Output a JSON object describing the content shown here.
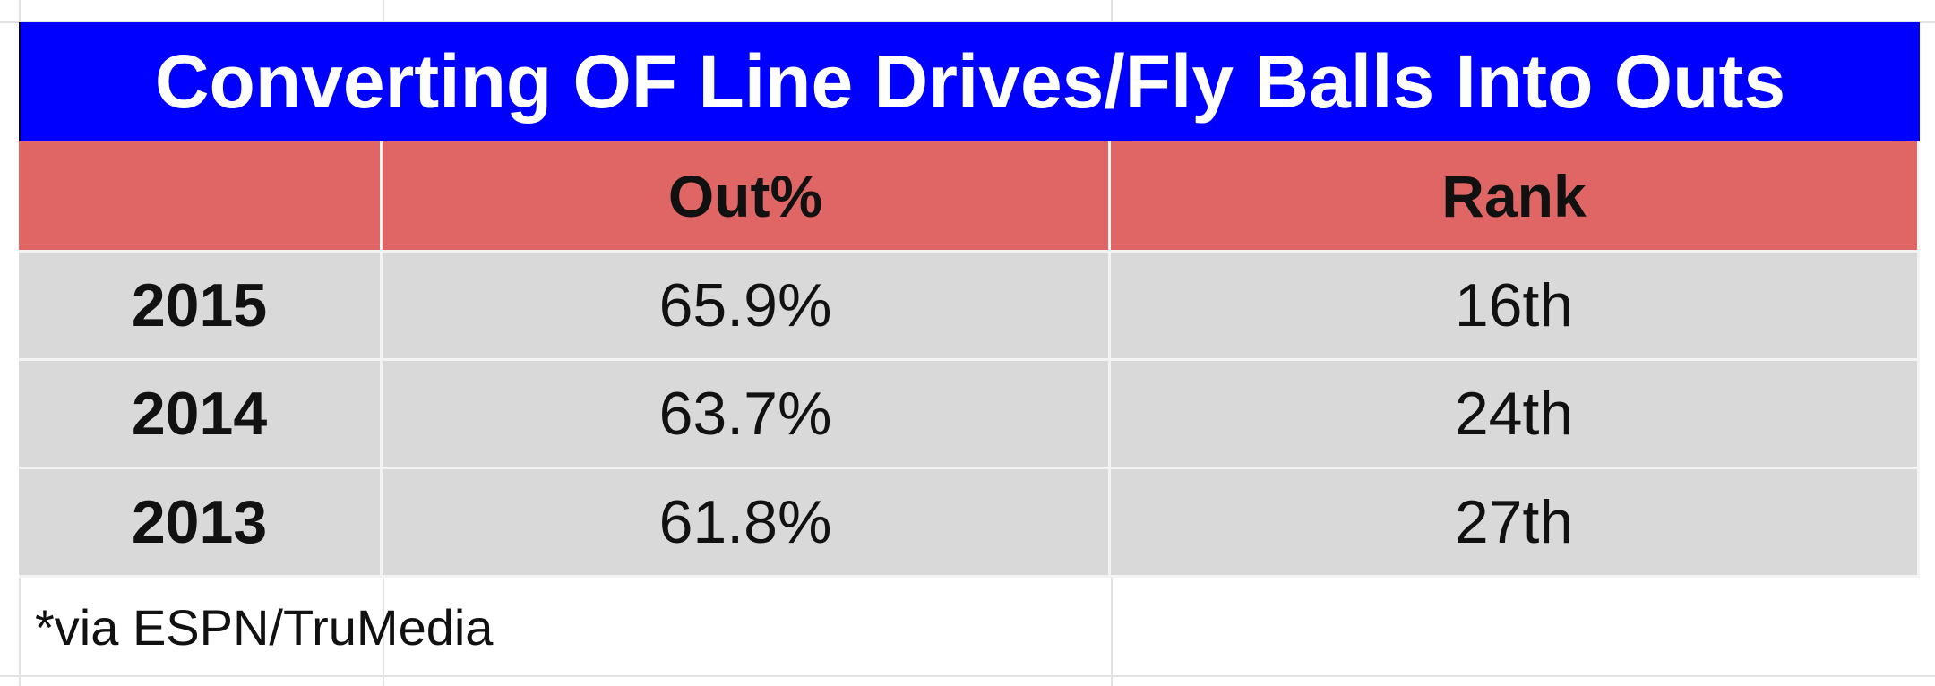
{
  "table": {
    "title": "Converting OF Line Drives/Fly Balls Into Outs",
    "header": [
      "Out%",
      "Rank"
    ],
    "rows": [
      [
        "2015",
        "65.9%",
        "16th"
      ],
      [
        "2014",
        "63.7%",
        "24th"
      ],
      [
        "2013",
        "61.8%",
        "27th"
      ]
    ],
    "footnote": "*via ESPN/TruMedia"
  }
}
